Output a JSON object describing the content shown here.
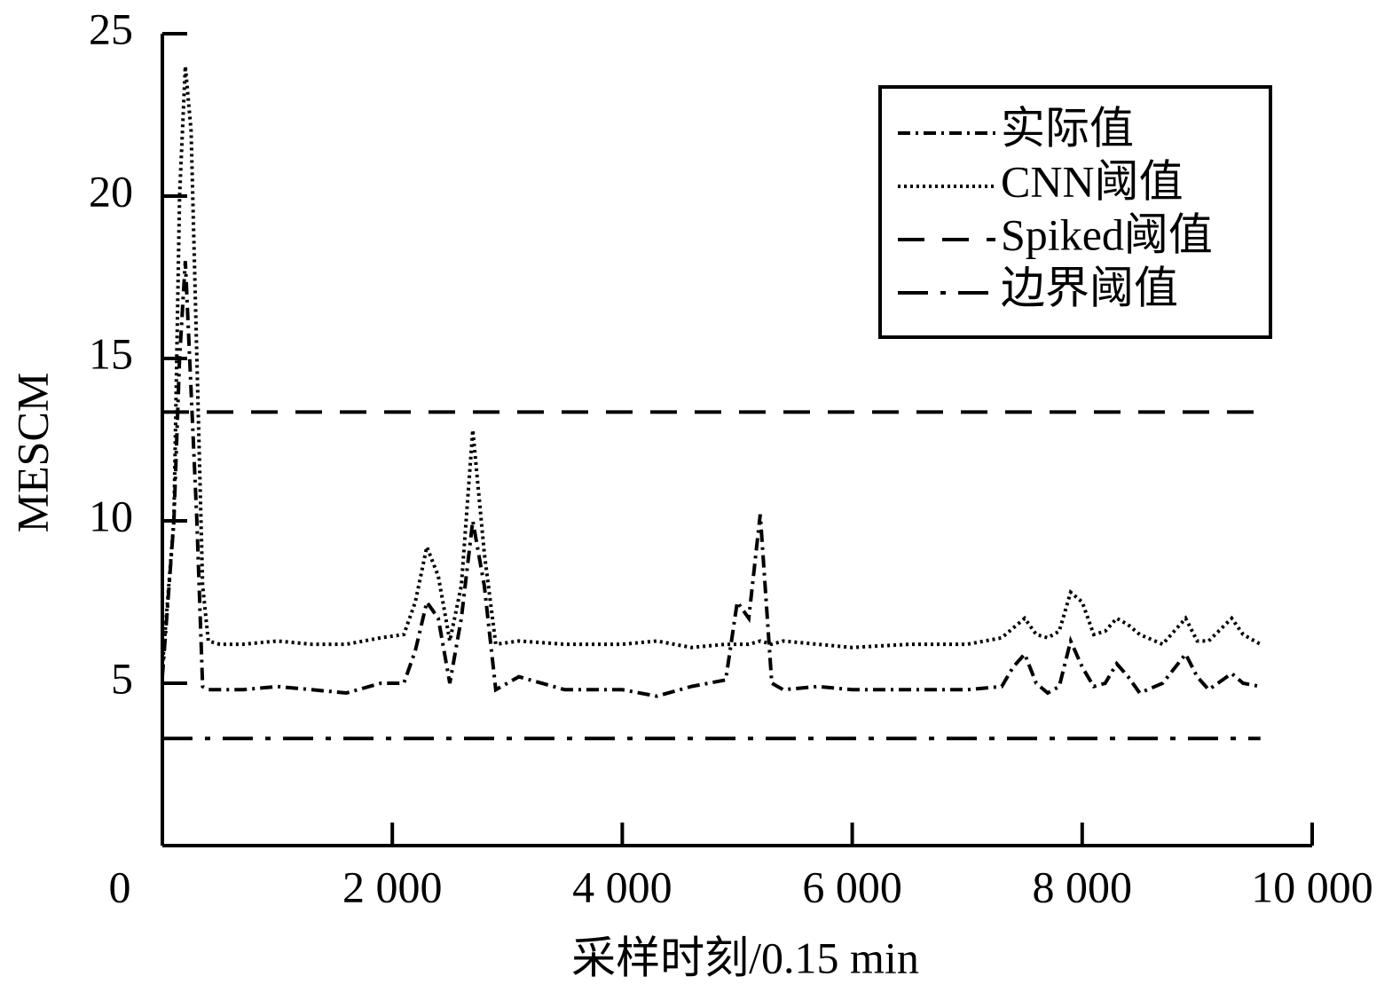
{
  "chart_data": {
    "type": "line",
    "x_label": "采样时刻/0.15 min",
    "y_label": "MESCM",
    "xlim": [
      0,
      10000
    ],
    "ylim": [
      0,
      25
    ],
    "xticks": [
      0,
      {
        "value": 2000,
        "label": "2 000"
      },
      {
        "value": 4000,
        "label": "4 000"
      },
      {
        "value": 6000,
        "label": "6 000"
      },
      {
        "value": 8000,
        "label": "8 000"
      },
      {
        "value": 10000,
        "label": "10 000"
      }
    ],
    "yticks": [
      5,
      10,
      15,
      20,
      25
    ],
    "legend": "upper right",
    "series": [
      {
        "name": "实际值",
        "color": "#000000",
        "style": "dashdot",
        "x": [
          0,
          100,
          150,
          200,
          250,
          300,
          350,
          400,
          500,
          700,
          1000,
          1300,
          1600,
          1900,
          2100,
          2200,
          2300,
          2400,
          2500,
          2600,
          2700,
          2800,
          2900,
          3100,
          3500,
          4000,
          4300,
          4600,
          4900,
          5000,
          5100,
          5200,
          5300,
          5400,
          5700,
          6000,
          6500,
          7000,
          7300,
          7400,
          7500,
          7600,
          7700,
          7800,
          7900,
          8000,
          8100,
          8200,
          8300,
          8400,
          8500,
          8700,
          8900,
          9000,
          9100,
          9300,
          9400,
          9550
        ],
        "values": [
          5.2,
          10,
          15,
          18,
          14,
          10,
          4.9,
          4.8,
          4.8,
          4.8,
          4.9,
          4.8,
          4.7,
          5.0,
          5.0,
          6,
          7.5,
          7,
          5,
          7,
          10,
          8,
          4.8,
          5.2,
          4.8,
          4.8,
          4.6,
          4.9,
          5.1,
          7.5,
          7,
          10.2,
          5,
          4.8,
          4.9,
          4.8,
          4.8,
          4.8,
          4.9,
          5.5,
          5.9,
          5,
          4.7,
          4.9,
          6.3,
          5.5,
          4.9,
          5,
          5.6,
          5.2,
          4.7,
          5,
          5.9,
          5.2,
          4.8,
          5.3,
          5,
          4.9
        ]
      },
      {
        "name": "CNN阈值",
        "color": "#000000",
        "style": "dotted",
        "x": [
          0,
          100,
          150,
          200,
          250,
          300,
          350,
          400,
          500,
          700,
          1000,
          1300,
          1600,
          1900,
          2100,
          2200,
          2300,
          2400,
          2500,
          2600,
          2700,
          2800,
          2900,
          3100,
          3500,
          4000,
          4300,
          4600,
          4900,
          5000,
          5100,
          5200,
          5300,
          5400,
          5700,
          6000,
          6500,
          7000,
          7300,
          7400,
          7500,
          7600,
          7700,
          7800,
          7900,
          8000,
          8100,
          8200,
          8300,
          8400,
          8500,
          8700,
          8900,
          9000,
          9100,
          9300,
          9400,
          9550
        ],
        "values": [
          5.5,
          10,
          20,
          24,
          22,
          15,
          8,
          6.3,
          6.2,
          6.2,
          6.3,
          6.2,
          6.2,
          6.4,
          6.5,
          7.5,
          9.2,
          8.3,
          6.3,
          8,
          12.8,
          9,
          6.2,
          6.3,
          6.2,
          6.2,
          6.3,
          6.1,
          6.2,
          6.2,
          6.2,
          6.3,
          6.2,
          6.3,
          6.2,
          6.1,
          6.2,
          6.2,
          6.4,
          6.7,
          7,
          6.5,
          6.4,
          6.6,
          7.8,
          7.5,
          6.5,
          6.6,
          7,
          6.8,
          6.5,
          6.2,
          7,
          6.3,
          6.3,
          7,
          6.5,
          6.2
        ]
      },
      {
        "name": "Spiked阈值",
        "color": "#000000",
        "style": "dashed",
        "x": [
          0,
          9550
        ],
        "values": [
          13.35,
          13.35
        ]
      },
      {
        "name": "边界阈值",
        "color": "#000000",
        "style": "longdashdot",
        "x": [
          0,
          9550
        ],
        "values": [
          3.3,
          3.3
        ]
      }
    ]
  }
}
